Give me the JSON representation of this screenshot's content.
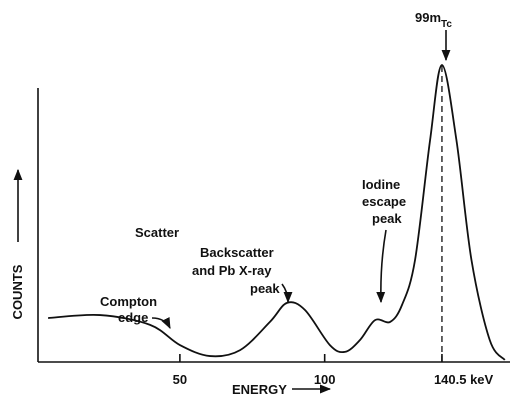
{
  "chart_data": {
    "type": "line",
    "x_label": "ENERGY",
    "y_label": "COUNTS",
    "x": [
      4.5,
      22.4,
      39.7,
      50.0,
      60.4,
      70.8,
      81.1,
      87.0,
      93.2,
      101.8,
      107.0,
      112.2,
      117.4,
      122.6,
      126.7,
      131.2,
      136.4,
      140.5,
      145.5,
      150.7,
      157.0,
      162.2
    ],
    "series": [
      {
        "color": "#111111",
        "values": [
          14.8,
          15.8,
          12.5,
          5.7,
          2.0,
          4.0,
          13.5,
          19.9,
          17.5,
          5.7,
          3.4,
          7.4,
          14.1,
          13.5,
          19.2,
          34.3,
          74.7,
          100,
          74.7,
          34.3,
          7.4,
          0.7
        ]
      }
    ],
    "xlim": [
      1,
      164
    ],
    "ylim": [
      0,
      100
    ],
    "xticks": [
      50,
      100,
      {
        "value": 140.5,
        "label": "140.5 keV"
      }
    ],
    "annotations": [
      {
        "lines": [
          "Scatter"
        ]
      },
      {
        "lines": [
          "Compton",
          "edge"
        ]
      },
      {
        "lines": [
          "Backscatter",
          "and Pb X-ray",
          "peak"
        ]
      },
      {
        "lines": [
          "Iodine",
          "escape",
          "peak"
        ]
      },
      {
        "lines": [
          "99m",
          "Tc"
        ]
      }
    ]
  }
}
